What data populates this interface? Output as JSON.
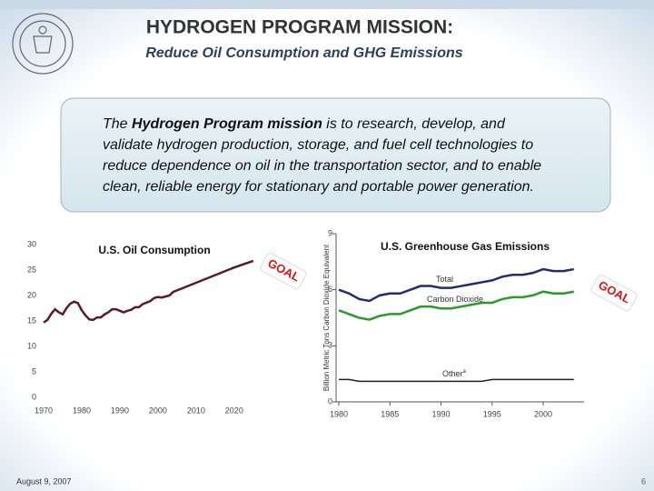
{
  "header": {
    "title": "HYDROGEN PROGRAM MISSION:",
    "subtitle": "Reduce Oil Consumption and GHG Emissions"
  },
  "mission": {
    "first_line": [
      "The ",
      "Hydrogen Program mission",
      " is to research, develop, and"
    ],
    "lines": [
      "validate hydrogen production, storage, and fuel cell technologies to",
      "reduce dependence on oil in the transportation sector, and to enable",
      "clean, reliable energy for stationary and portable power generation."
    ]
  },
  "chart_data": [
    {
      "type": "line",
      "title": "U.S. Oil Consumption",
      "annotation": "GOAL",
      "x": [
        1970,
        1971,
        1972,
        1973,
        1974,
        1975,
        1976,
        1977,
        1978,
        1979,
        1980,
        1981,
        1982,
        1983,
        1984,
        1985,
        1986,
        1987,
        1988,
        1989,
        1990,
        1991,
        1992,
        1993,
        1994,
        1995,
        1996,
        1997,
        1998,
        1999,
        2000,
        2001,
        2002,
        2003,
        2004,
        2005,
        2010,
        2015,
        2020,
        2025
      ],
      "series": [
        {
          "name": "U.S. Oil Consumption",
          "color": "#5a1a2a",
          "values": [
            14.7,
            15.2,
            16.4,
            17.3,
            16.7,
            16.3,
            17.5,
            18.4,
            18.8,
            18.5,
            17.1,
            16.1,
            15.3,
            15.2,
            15.7,
            15.7,
            16.3,
            16.7,
            17.3,
            17.3,
            17.0,
            16.7,
            17.0,
            17.2,
            17.7,
            17.7,
            18.3,
            18.6,
            18.9,
            19.5,
            19.7,
            19.6,
            19.8,
            20.0,
            20.7,
            21.0,
            22.5,
            24.0,
            25.5,
            26.8
          ]
        }
      ],
      "xlim": [
        1970,
        2026
      ],
      "xticks": [
        1970,
        1980,
        1990,
        2000,
        2010,
        2020
      ],
      "ylim": [
        0,
        30
      ],
      "yticks": [
        0,
        5,
        10,
        15,
        20,
        25,
        30
      ]
    },
    {
      "type": "line",
      "title": "U.S. Greenhouse Gas Emissions",
      "annotation": "GOAL",
      "y_label": "Billion Metric Tons Carbon Dioxide Equivalent",
      "x": [
        1980,
        1981,
        1982,
        1983,
        1984,
        1985,
        1986,
        1987,
        1988,
        1989,
        1990,
        1991,
        1992,
        1993,
        1994,
        1995,
        1996,
        1997,
        1998,
        1999,
        2000,
        2001,
        2002,
        2003
      ],
      "series": [
        {
          "name": "Total",
          "color": "#1f2f6e",
          "values": [
            6.0,
            5.8,
            5.5,
            5.4,
            5.7,
            5.8,
            5.8,
            6.0,
            6.2,
            6.2,
            6.1,
            6.1,
            6.2,
            6.3,
            6.4,
            6.5,
            6.7,
            6.8,
            6.8,
            6.9,
            7.1,
            7.0,
            7.0,
            7.1
          ]
        },
        {
          "name": "Carbon Dioxide",
          "color": "#2a9a2a",
          "values": [
            4.9,
            4.7,
            4.5,
            4.4,
            4.6,
            4.7,
            4.7,
            4.9,
            5.1,
            5.1,
            5.0,
            5.0,
            5.1,
            5.2,
            5.3,
            5.3,
            5.5,
            5.6,
            5.6,
            5.7,
            5.9,
            5.8,
            5.8,
            5.9
          ]
        },
        {
          "name": "Other",
          "label_suffix": "a",
          "color": "#222222",
          "values": [
            1.2,
            1.2,
            1.1,
            1.1,
            1.1,
            1.1,
            1.1,
            1.1,
            1.1,
            1.1,
            1.1,
            1.1,
            1.1,
            1.1,
            1.1,
            1.2,
            1.2,
            1.2,
            1.2,
            1.2,
            1.2,
            1.2,
            1.2,
            1.2
          ]
        }
      ],
      "xlim": [
        1980,
        2004
      ],
      "xticks": [
        1980,
        1985,
        1990,
        1995,
        2000
      ],
      "ylim": [
        0,
        9
      ],
      "yticks": [
        0,
        3,
        6,
        9
      ],
      "axes": true
    }
  ],
  "footer": {
    "date": "August 9, 2007",
    "page": "6"
  }
}
